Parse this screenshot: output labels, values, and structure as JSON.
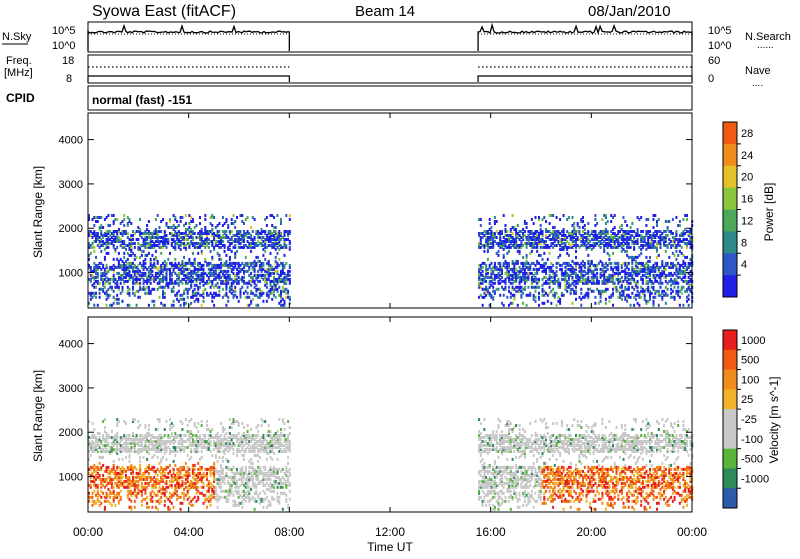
{
  "header": {
    "title": "Syowa East (fitACF)",
    "beam": "Beam 14",
    "date": "08/Jan/2010"
  },
  "noise_panel": {
    "left_label": "N.Sky",
    "right_label": "N.Search",
    "right_dots": "......",
    "tick_top": "10^5",
    "tick_bottom": "10^0"
  },
  "freq_panel": {
    "left_label_1": "Freq.",
    "left_label_2": "[MHz]",
    "right_label": "Nave",
    "right_dots": "....",
    "left_ticks": [
      "18",
      "8"
    ],
    "right_ticks": [
      "60",
      "0"
    ]
  },
  "cpid": {
    "label": "CPID",
    "value": "normal (fast) -151"
  },
  "colors": {
    "power": [
      "#1f1fe6",
      "#2e56c8",
      "#2f8a8a",
      "#4da85a",
      "#8cc63f",
      "#e6c229",
      "#f08c1e",
      "#f05a14",
      "#e61e1e"
    ],
    "velocity": [
      "#e61e1e",
      "#f05a14",
      "#f08c1e",
      "#f0b428",
      "#c8c8c8",
      "#c8c8c8",
      "#5ab43c",
      "#2e8a5a",
      "#2e5aaa",
      "#1f3cc8"
    ]
  },
  "chart_data": [
    {
      "type": "heatmap",
      "name": "power",
      "ylabel": "Slant Range [km]",
      "yticks": [
        "4000",
        "3000",
        "2000",
        "1000"
      ],
      "ylim": [
        200,
        4600
      ],
      "colorbar_label": "Power [dB]",
      "colorbar_ticks": [
        "28",
        "24",
        "20",
        "16",
        "12",
        "8",
        "4"
      ],
      "data_time_ranges_ut": [
        [
          "00:00",
          "08:00"
        ],
        [
          "15:30",
          "24:00"
        ]
      ],
      "echo_range_km": [
        250,
        2300
      ]
    },
    {
      "type": "heatmap",
      "name": "velocity",
      "ylabel": "Slant Range [km]",
      "yticks": [
        "4000",
        "3000",
        "2000",
        "1000"
      ],
      "ylim": [
        200,
        4600
      ],
      "colorbar_label": "Velocity [m s^-1]",
      "colorbar_ticks": [
        "1000",
        "500",
        "100",
        "25",
        "-25",
        "-100",
        "-500",
        "-1000"
      ],
      "data_time_ranges_ut": [
        [
          "00:00",
          "08:00"
        ],
        [
          "15:30",
          "24:00"
        ]
      ],
      "echo_range_km": [
        250,
        2300
      ]
    }
  ],
  "x_axis": {
    "label": "Time UT",
    "ticks": [
      "00:00",
      "04:00",
      "08:00",
      "12:00",
      "16:00",
      "20:00",
      "00:00"
    ]
  }
}
